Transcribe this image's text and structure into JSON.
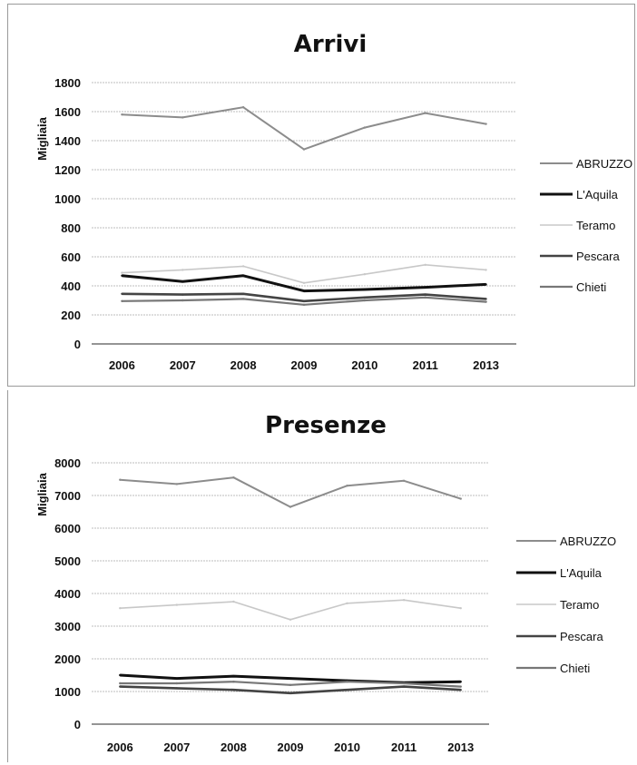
{
  "chart_data": [
    {
      "type": "line",
      "title": "Arrivi",
      "ylabel": "Migliaia",
      "xlabel": "",
      "categories": [
        "2006",
        "2007",
        "2008",
        "2009",
        "2010",
        "2011",
        "2013"
      ],
      "ylim": [
        0,
        1800
      ],
      "yticks": [
        0,
        200,
        400,
        600,
        800,
        1000,
        1200,
        1400,
        1600,
        1800
      ],
      "grid": true,
      "legend_position": "right",
      "series": [
        {
          "name": "ABRUZZO",
          "color": "#8c8c8c",
          "values": [
            1580,
            1560,
            1630,
            1340,
            1490,
            1590,
            1515
          ]
        },
        {
          "name": "L'Aquila",
          "color": "#111111",
          "values": [
            470,
            430,
            470,
            365,
            375,
            390,
            410
          ]
        },
        {
          "name": "Teramo",
          "color": "#c8c8c8",
          "values": [
            490,
            510,
            535,
            420,
            480,
            545,
            510
          ]
        },
        {
          "name": "Pescara",
          "color": "#444444",
          "values": [
            345,
            340,
            345,
            295,
            320,
            340,
            310
          ]
        },
        {
          "name": "Chieti",
          "color": "#777777",
          "values": [
            295,
            300,
            310,
            270,
            300,
            320,
            290
          ]
        }
      ]
    },
    {
      "type": "line",
      "title": "Presenze",
      "ylabel": "Migliaia",
      "xlabel": "",
      "categories": [
        "2006",
        "2007",
        "2008",
        "2009",
        "2010",
        "2011",
        "2013"
      ],
      "ylim": [
        0,
        8000
      ],
      "yticks": [
        0,
        1000,
        2000,
        3000,
        4000,
        5000,
        6000,
        7000,
        8000
      ],
      "grid": true,
      "legend_position": "right",
      "series": [
        {
          "name": "ABRUZZO",
          "color": "#8c8c8c",
          "values": [
            7480,
            7350,
            7550,
            6650,
            7300,
            7450,
            6900
          ]
        },
        {
          "name": "L'Aquila",
          "color": "#111111",
          "values": [
            1500,
            1400,
            1470,
            1400,
            1330,
            1270,
            1300
          ]
        },
        {
          "name": "Teramo",
          "color": "#c8c8c8",
          "values": [
            3550,
            3650,
            3750,
            3200,
            3700,
            3800,
            3550
          ]
        },
        {
          "name": "Pescara",
          "color": "#444444",
          "values": [
            1150,
            1100,
            1050,
            950,
            1050,
            1150,
            1050
          ]
        },
        {
          "name": "Chieti",
          "color": "#777777",
          "values": [
            1250,
            1250,
            1300,
            1200,
            1300,
            1250,
            1150
          ]
        }
      ]
    }
  ]
}
